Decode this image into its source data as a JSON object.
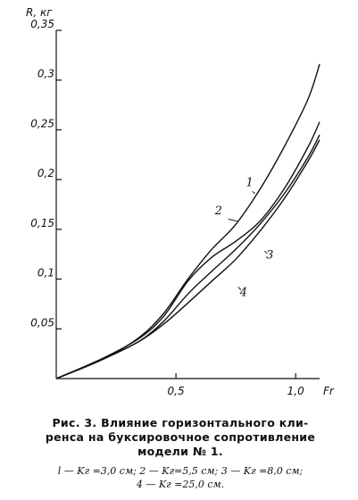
{
  "chart_data": {
    "type": "line",
    "ylabel": "R, кг",
    "xlabel": "Fr",
    "xlim": [
      0,
      1.1
    ],
    "ylim": [
      0,
      0.35
    ],
    "x_ticks": [
      {
        "value": 0.5,
        "label": "0,5"
      },
      {
        "value": 1.0,
        "label": "1,0"
      }
    ],
    "y_ticks": [
      {
        "value": 0.05,
        "label": "0,05"
      },
      {
        "value": 0.1,
        "label": "0,1"
      },
      {
        "value": 0.15,
        "label": "0,15"
      },
      {
        "value": 0.2,
        "label": "0,2"
      },
      {
        "value": 0.25,
        "label": "0,25"
      },
      {
        "value": 0.3,
        "label": "0,3"
      },
      {
        "value": 0.35,
        "label": "0,35"
      }
    ],
    "grid": false,
    "series": [
      {
        "name": "1",
        "x": [
          0,
          0.2,
          0.35,
          0.45,
          0.55,
          0.65,
          0.75,
          0.85,
          0.95,
          1.05,
          1.1
        ],
        "y": [
          0,
          0.02,
          0.042,
          0.066,
          0.1,
          0.13,
          0.155,
          0.19,
          0.232,
          0.28,
          0.316
        ]
      },
      {
        "name": "2",
        "x": [
          0,
          0.2,
          0.35,
          0.45,
          0.55,
          0.65,
          0.75,
          0.85,
          0.95,
          1.05,
          1.1
        ],
        "y": [
          0,
          0.021,
          0.041,
          0.063,
          0.098,
          0.122,
          0.138,
          0.158,
          0.19,
          0.232,
          0.258
        ]
      },
      {
        "name": "3",
        "x": [
          0,
          0.2,
          0.35,
          0.45,
          0.55,
          0.65,
          0.75,
          0.85,
          0.95,
          1.05,
          1.1
        ],
        "y": [
          0,
          0.02,
          0.038,
          0.058,
          0.085,
          0.108,
          0.13,
          0.155,
          0.185,
          0.222,
          0.245
        ]
      },
      {
        "name": "4",
        "x": [
          0,
          0.2,
          0.35,
          0.45,
          0.55,
          0.65,
          0.75,
          0.85,
          0.95,
          1.05,
          1.1
        ],
        "y": [
          0,
          0.02,
          0.038,
          0.055,
          0.076,
          0.098,
          0.12,
          0.148,
          0.18,
          0.218,
          0.24
        ]
      }
    ],
    "labels": [
      {
        "text": "1",
        "series": "1",
        "x": 0.83,
        "y": 0.186
      },
      {
        "text": "2",
        "series": "2",
        "x": 0.76,
        "y": 0.158
      },
      {
        "text": "3",
        "series": "3",
        "x": 0.87,
        "y": 0.128
      },
      {
        "text": "4",
        "series": "4",
        "x": 0.76,
        "y": 0.092
      }
    ]
  },
  "caption": {
    "title_line1": "Рис. 3. Влияние горизонтального кли-",
    "title_line2": "ренса на буксировочное сопротивление",
    "title_line3": "модели № 1.",
    "note_line1": "l — Kг =3,0 см; 2 — Kг=5,5 см; 3 — Kг =8,0 см;",
    "note_line2": "4 — Kг =25,0 см."
  }
}
